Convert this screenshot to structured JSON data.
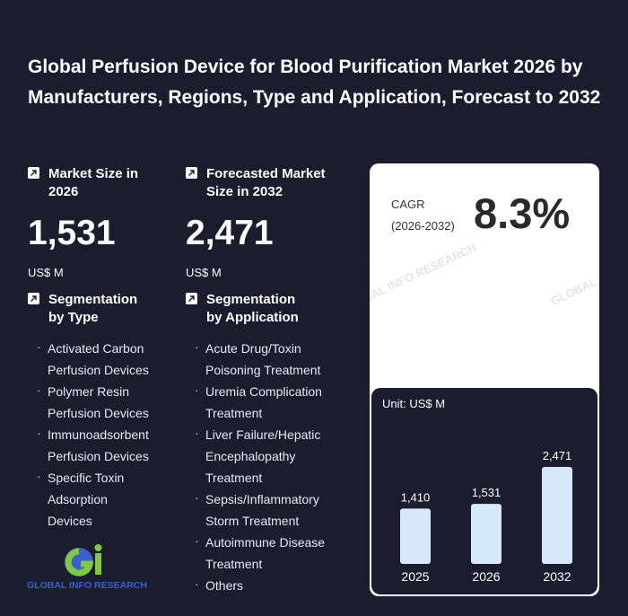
{
  "title": "Global Perfusion Device for Blood Purification Market 2026 by Manufacturers, Regions, Type and Application, Forecast to 2032",
  "market_size": {
    "label": "Market Size in 2026",
    "value": "1,531",
    "unit": "US$ M"
  },
  "forecast_size": {
    "label": "Forecasted Market Size in 2032",
    "value": "2,471",
    "unit": "US$ M"
  },
  "cagr": {
    "label_line1": "CAGR",
    "label_line2": "(2026-2032)",
    "value": "8.3%"
  },
  "segment_type": {
    "label": "Segmentation by Type",
    "items": [
      "Activated Carbon Perfusion Devices",
      "Polymer Resin Perfusion Devices",
      "Immunoadsorbent Perfusion Devices",
      "Specific Toxin Adsorption Devices"
    ]
  },
  "segment_application": {
    "label": "Segmentation by Application",
    "items": [
      "Acute Drug/Toxin Poisoning Treatment",
      "Uremia Complication Treatment",
      "Liver Failure/Hepatic Encephalopathy Treatment",
      "Sepsis/Inflammatory Storm Treatment",
      "Autoimmune Disease Treatment",
      "Others"
    ]
  },
  "logo_text": "GLOBAL INFO RESEARCH",
  "colors": {
    "background": "#1b1d2e",
    "bar": "#d6e8fb",
    "card": "#ffffff"
  },
  "chart_data": {
    "type": "bar",
    "unit_label": "Unit: US$ M",
    "categories": [
      "2025",
      "2026",
      "2032"
    ],
    "values": [
      1410,
      1531,
      2471
    ],
    "value_labels": [
      "1,410",
      "1,531",
      "2,471"
    ],
    "ylim": [
      0,
      2471
    ],
    "grid": false
  }
}
